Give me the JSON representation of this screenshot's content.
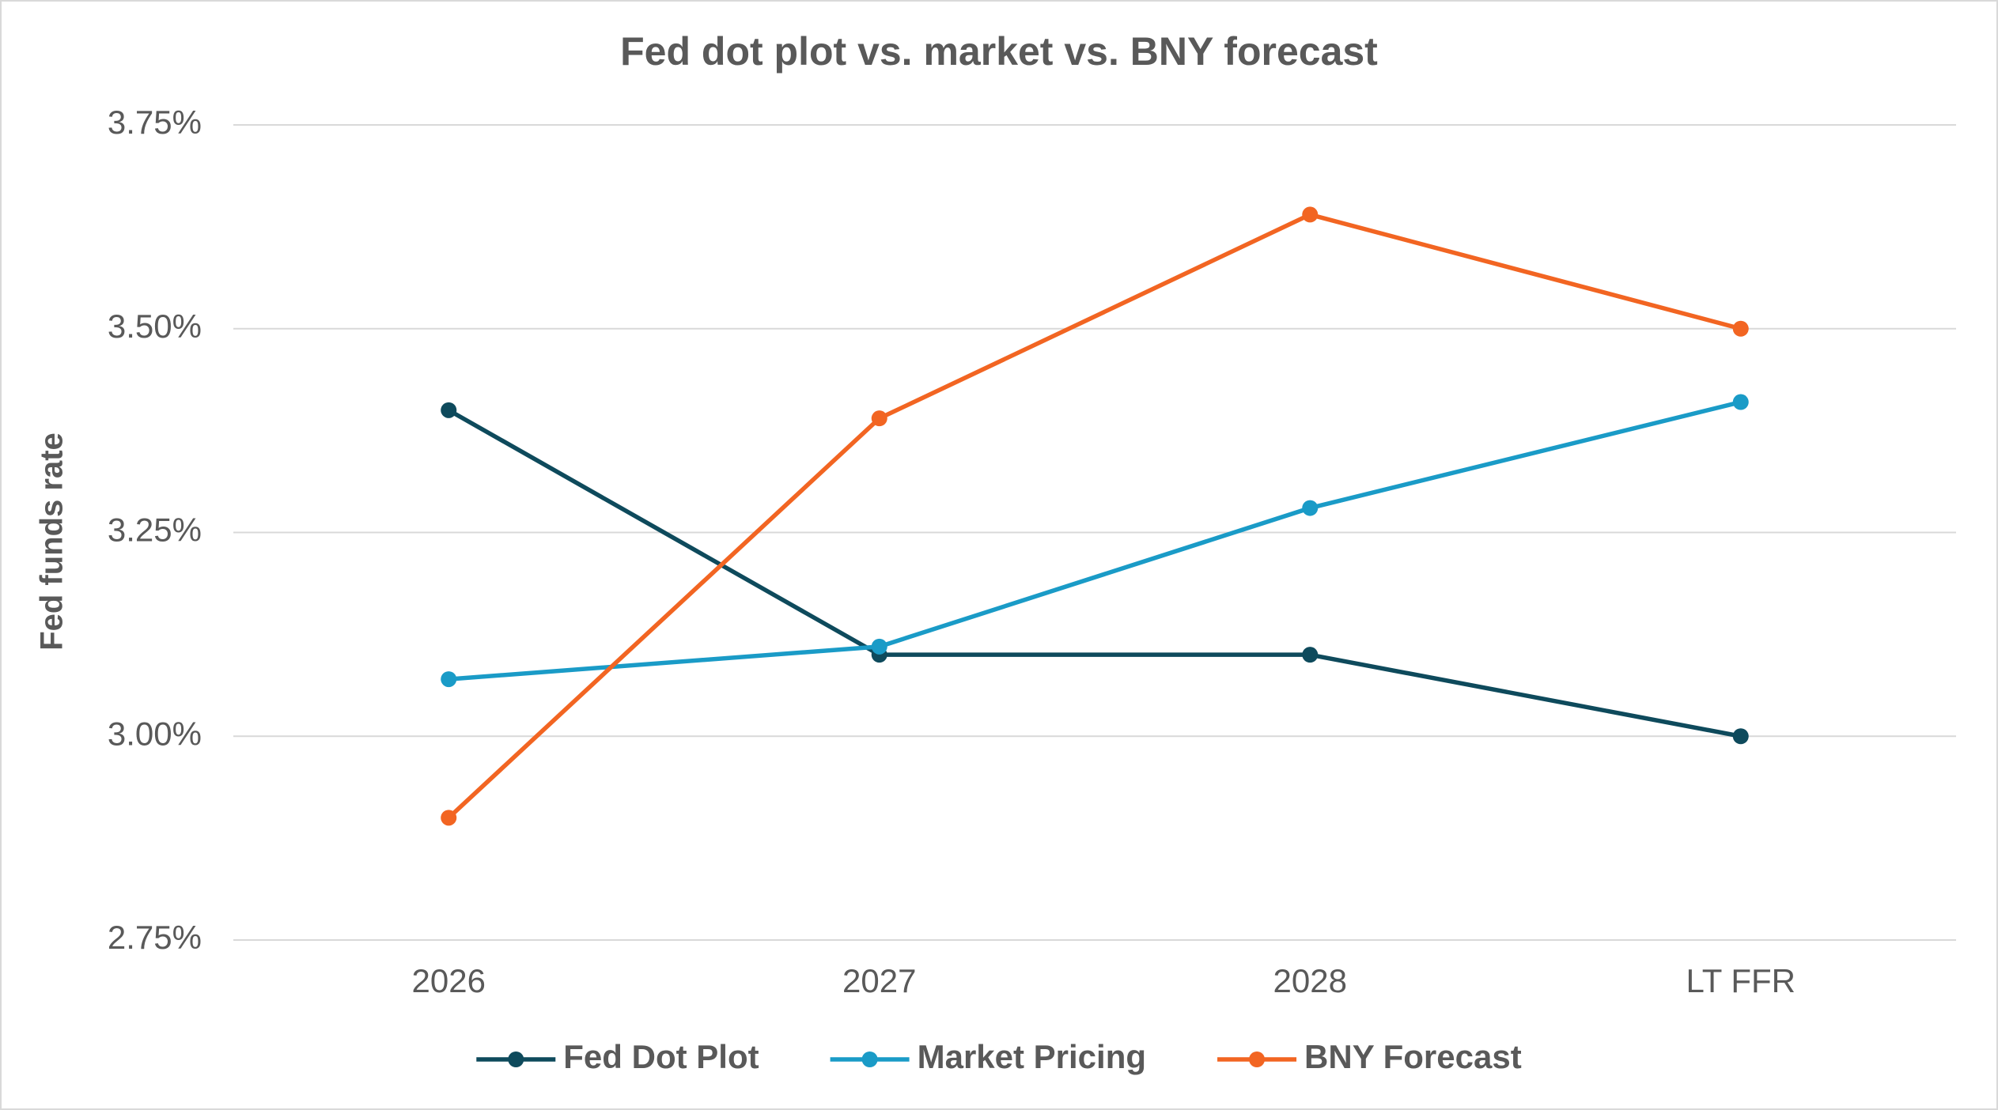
{
  "chart_data": {
    "type": "line",
    "title": "Fed dot plot vs. market vs. BNY forecast",
    "y_label": "Fed funds rate",
    "categories": [
      "2026",
      "2027",
      "2028",
      "LT FFR"
    ],
    "series": [
      {
        "name": "Fed Dot Plot",
        "color": "#0e4a5c",
        "values": [
          3.4,
          3.1,
          3.1,
          3.0
        ]
      },
      {
        "name": "Market Pricing",
        "color": "#1a9bc7",
        "values": [
          3.07,
          3.11,
          3.28,
          3.41
        ]
      },
      {
        "name": "BNY Forecast",
        "color": "#f26522",
        "values": [
          2.9,
          3.39,
          3.64,
          3.5
        ]
      }
    ],
    "ylim": [
      2.75,
      3.75
    ],
    "yticks": [
      {
        "value": 2.75,
        "label": "2.75%"
      },
      {
        "value": 3.0,
        "label": "3.00%"
      },
      {
        "value": 3.25,
        "label": "3.25%"
      },
      {
        "value": 3.5,
        "label": "3.50%"
      },
      {
        "value": 3.75,
        "label": "3.75%"
      }
    ],
    "grid": true,
    "legend": "bottom"
  }
}
